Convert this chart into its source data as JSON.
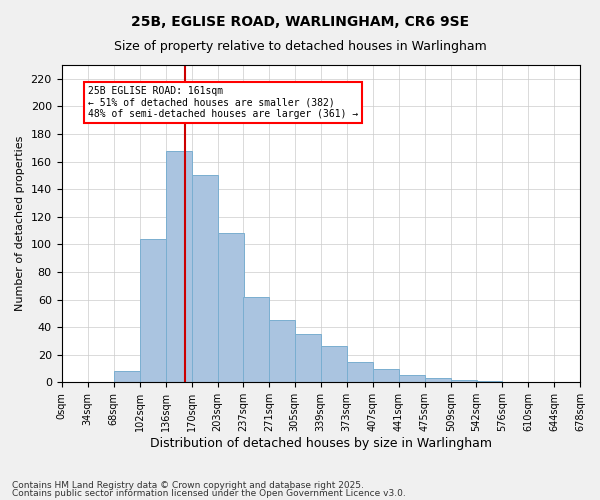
{
  "title1": "25B, EGLISE ROAD, WARLINGHAM, CR6 9SE",
  "title2": "Size of property relative to detached houses in Warlingham",
  "xlabel": "Distribution of detached houses by size in Warlingham",
  "ylabel": "Number of detached properties",
  "bar_color": "#aac4e0",
  "bar_edge_color": "#7aaed0",
  "vline_color": "#cc0000",
  "vline_x": 161,
  "annotation_box_text": "25B EGLISE ROAD: 161sqm\n← 51% of detached houses are smaller (382)\n48% of semi-detached houses are larger (361) →",
  "bins": [
    0,
    34,
    68,
    102,
    136,
    170,
    204,
    237,
    271,
    305,
    339,
    373,
    407,
    441,
    475,
    509,
    542,
    576,
    610,
    644,
    678
  ],
  "bin_labels": [
    "0sqm",
    "34sqm",
    "68sqm",
    "102sqm",
    "136sqm",
    "170sqm",
    "203sqm",
    "237sqm",
    "271sqm",
    "305sqm",
    "339sqm",
    "373sqm",
    "407sqm",
    "441sqm",
    "475sqm",
    "509sqm",
    "542sqm",
    "576sqm",
    "610sqm",
    "644sqm",
    "678sqm"
  ],
  "counts": [
    0,
    0,
    8,
    104,
    168,
    150,
    108,
    62,
    45,
    35,
    26,
    15,
    10,
    5,
    3,
    2,
    1,
    0,
    0,
    0
  ],
  "ylim": [
    0,
    230
  ],
  "yticks": [
    0,
    20,
    40,
    60,
    80,
    100,
    120,
    140,
    160,
    180,
    200,
    220
  ],
  "footer1": "Contains HM Land Registry data © Crown copyright and database right 2025.",
  "footer2": "Contains public sector information licensed under the Open Government Licence v3.0.",
  "background_color": "#f0f0f0",
  "plot_background_color": "#ffffff",
  "grid_color": "#cccccc"
}
